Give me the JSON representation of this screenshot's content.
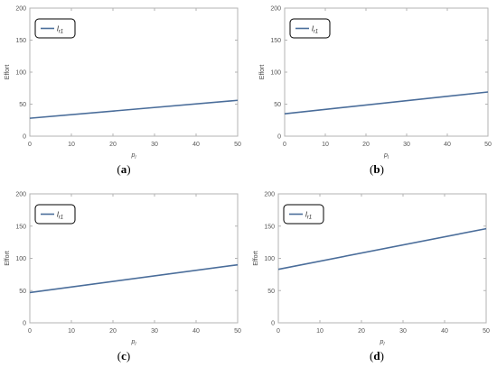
{
  "chart_data": [
    {
      "type": "line",
      "panel_label": "a",
      "xlabel": "p_l",
      "ylabel": "Effort",
      "xlim": [
        0,
        50
      ],
      "ylim": [
        0,
        200
      ],
      "xticks": [
        0,
        10,
        20,
        30,
        40,
        50
      ],
      "yticks": [
        0,
        50,
        100,
        150,
        200
      ],
      "legend_position": "top-left",
      "series": [
        {
          "name": "l_r1",
          "x": [
            0,
            50
          ],
          "values": [
            28,
            56
          ],
          "color": "#4a6d9a"
        }
      ]
    },
    {
      "type": "line",
      "panel_label": "b",
      "xlabel": "p_l",
      "ylabel": "Effort",
      "xlim": [
        0,
        50
      ],
      "ylim": [
        0,
        200
      ],
      "xticks": [
        0,
        10,
        20,
        30,
        40,
        50
      ],
      "yticks": [
        0,
        50,
        100,
        150,
        200
      ],
      "legend_position": "top-left",
      "series": [
        {
          "name": "l_r1",
          "x": [
            0,
            50
          ],
          "values": [
            35,
            69
          ],
          "color": "#4a6d9a"
        }
      ]
    },
    {
      "type": "line",
      "panel_label": "c",
      "xlabel": "p_l",
      "ylabel": "Effort",
      "xlim": [
        0,
        50
      ],
      "ylim": [
        0,
        200
      ],
      "xticks": [
        0,
        10,
        20,
        30,
        40,
        50
      ],
      "yticks": [
        0,
        50,
        100,
        150,
        200
      ],
      "legend_position": "top-left",
      "series": [
        {
          "name": "l_r1",
          "x": [
            0,
            50
          ],
          "values": [
            47,
            90
          ],
          "color": "#4a6d9a"
        }
      ]
    },
    {
      "type": "line",
      "panel_label": "d",
      "xlabel": "p_l",
      "ylabel": "Effort",
      "xlim": [
        0,
        50
      ],
      "ylim": [
        0,
        200
      ],
      "xticks": [
        0,
        10,
        20,
        30,
        40,
        50
      ],
      "yticks": [
        0,
        50,
        100,
        150,
        200
      ],
      "legend_position": "top-left",
      "series": [
        {
          "name": "l_r1",
          "x": [
            0,
            50
          ],
          "values": [
            83,
            146
          ],
          "color": "#4a6d9a"
        }
      ]
    }
  ],
  "style": {
    "axis_color": "#b3b3b3",
    "tick_text_color": "#555555",
    "line_color": "#4a6d9a",
    "legend_border": "#000000"
  }
}
